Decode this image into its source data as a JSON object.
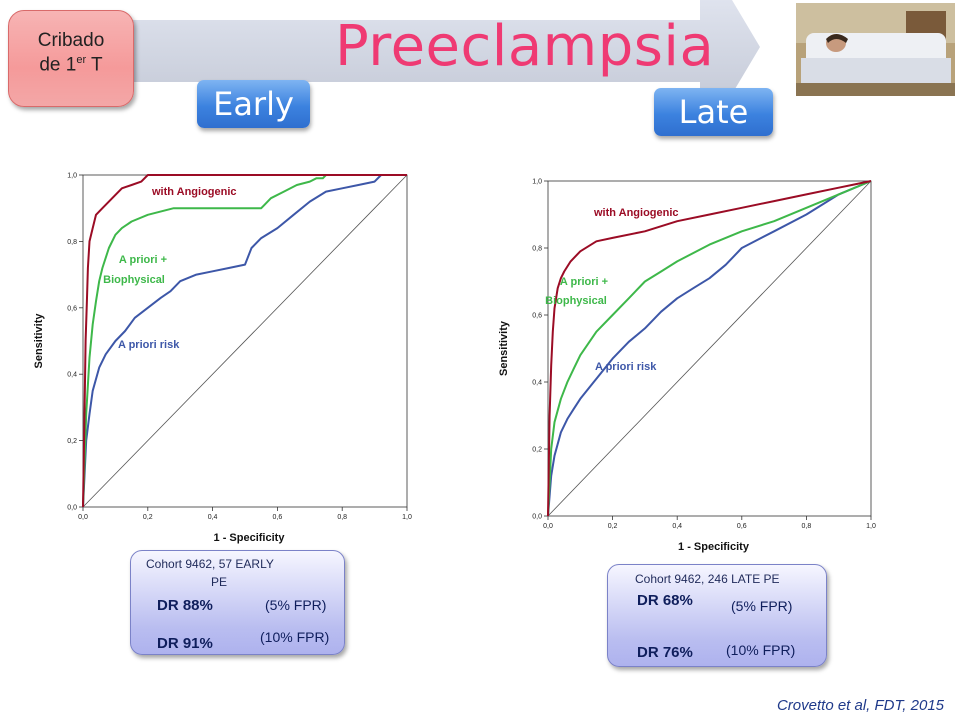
{
  "banner": {
    "title": "Preeclampsia"
  },
  "badge": {
    "line1": "Cribado",
    "line2_prefix": "de 1",
    "line2_sup": "er",
    "line2_suffix": " T"
  },
  "pills": {
    "early": "Early",
    "late": "Late"
  },
  "colors": {
    "angiogenic": "#9b0c25",
    "biophysical": "#3eb84a",
    "apriori": "#3d57a8",
    "diagonal": "#555555",
    "banner_title": "#ef3a73",
    "pill": "#3c82df"
  },
  "chart_data": [
    {
      "type": "line",
      "panel": "early",
      "xlabel": "1 - Specificity",
      "ylabel": "Sensitivity",
      "xlim": [
        0,
        1
      ],
      "ylim": [
        0,
        1
      ],
      "xticks": [
        "0,0",
        "0,2",
        "0,4",
        "0,6",
        "0,8",
        "1,0"
      ],
      "yticks": [
        "0,0",
        "0,2",
        "0,4",
        "0,6",
        "0,8",
        "1,0"
      ],
      "reference_diagonal": true,
      "series": [
        {
          "name": "with  Angiogenic",
          "color_key": "angiogenic",
          "x": [
            0,
            0.005,
            0.008,
            0.012,
            0.015,
            0.02,
            0.03,
            0.04,
            0.06,
            0.08,
            0.1,
            0.12,
            0.15,
            0.18,
            0.2,
            0.3,
            0.5,
            1
          ],
          "y": [
            0,
            0.3,
            0.5,
            0.62,
            0.72,
            0.8,
            0.84,
            0.88,
            0.9,
            0.92,
            0.94,
            0.96,
            0.97,
            0.98,
            1.0,
            1.0,
            1.0,
            1.0
          ]
        },
        {
          "name": "A priori +\nBiophysical",
          "color_key": "biophysical",
          "x": [
            0,
            0.01,
            0.02,
            0.03,
            0.04,
            0.05,
            0.06,
            0.08,
            0.1,
            0.12,
            0.15,
            0.2,
            0.28,
            0.4,
            0.55,
            0.56,
            0.58,
            0.62,
            0.66,
            0.7,
            0.72,
            0.74,
            0.75,
            0.8,
            1
          ],
          "y": [
            0,
            0.28,
            0.45,
            0.55,
            0.62,
            0.68,
            0.72,
            0.78,
            0.82,
            0.84,
            0.86,
            0.88,
            0.9,
            0.9,
            0.9,
            0.91,
            0.93,
            0.95,
            0.97,
            0.98,
            0.99,
            0.99,
            1.0,
            1.0,
            1.0
          ]
        },
        {
          "name": "A priori risk",
          "color_key": "apriori",
          "x": [
            0,
            0.01,
            0.02,
            0.03,
            0.05,
            0.07,
            0.1,
            0.13,
            0.16,
            0.2,
            0.24,
            0.27,
            0.3,
            0.35,
            0.4,
            0.45,
            0.5,
            0.52,
            0.55,
            0.6,
            0.65,
            0.7,
            0.75,
            0.8,
            0.85,
            0.9,
            0.92,
            0.95,
            1
          ],
          "y": [
            0,
            0.2,
            0.28,
            0.35,
            0.42,
            0.46,
            0.5,
            0.53,
            0.57,
            0.6,
            0.63,
            0.65,
            0.68,
            0.7,
            0.71,
            0.72,
            0.73,
            0.78,
            0.81,
            0.84,
            0.88,
            0.92,
            0.95,
            0.96,
            0.97,
            0.98,
            1.0,
            1.0,
            1.0
          ]
        }
      ],
      "annotations": [
        "with  Angiogenic",
        "A priori +",
        "Biophysical",
        "A priori risk"
      ]
    },
    {
      "type": "line",
      "panel": "late",
      "xlabel": "1 - Specificity",
      "ylabel": "Sensitivity",
      "xlim": [
        0,
        1
      ],
      "ylim": [
        0,
        1
      ],
      "xticks": [
        "0,0",
        "0,2",
        "0,4",
        "0,6",
        "0,8",
        "1,0"
      ],
      "yticks": [
        "0,0",
        "0,2",
        "0,4",
        "0,6",
        "0,8",
        "1,0"
      ],
      "reference_diagonal": true,
      "series": [
        {
          "name": "with  Angiogenic",
          "color_key": "angiogenic",
          "x": [
            0,
            0.005,
            0.01,
            0.015,
            0.02,
            0.03,
            0.04,
            0.05,
            0.07,
            0.1,
            0.15,
            0.2,
            0.3,
            0.4,
            0.5,
            0.6,
            0.7,
            0.8,
            0.9,
            0.95,
            1
          ],
          "y": [
            0,
            0.3,
            0.45,
            0.55,
            0.62,
            0.68,
            0.71,
            0.73,
            0.76,
            0.79,
            0.82,
            0.83,
            0.85,
            0.88,
            0.9,
            0.92,
            0.94,
            0.96,
            0.98,
            0.99,
            1.0
          ]
        },
        {
          "name": "A priori +\nBiophysical",
          "color_key": "biophysical",
          "x": [
            0,
            0.01,
            0.02,
            0.04,
            0.06,
            0.08,
            0.1,
            0.15,
            0.2,
            0.25,
            0.3,
            0.35,
            0.4,
            0.5,
            0.6,
            0.7,
            0.8,
            0.9,
            1
          ],
          "y": [
            0,
            0.2,
            0.28,
            0.35,
            0.4,
            0.44,
            0.48,
            0.55,
            0.6,
            0.65,
            0.7,
            0.73,
            0.76,
            0.81,
            0.85,
            0.88,
            0.92,
            0.96,
            1.0
          ]
        },
        {
          "name": "A priori risk",
          "color_key": "apriori",
          "x": [
            0,
            0.01,
            0.02,
            0.04,
            0.06,
            0.08,
            0.1,
            0.15,
            0.2,
            0.25,
            0.3,
            0.35,
            0.4,
            0.45,
            0.5,
            0.55,
            0.6,
            0.7,
            0.8,
            0.9,
            1
          ],
          "y": [
            0,
            0.12,
            0.18,
            0.25,
            0.29,
            0.32,
            0.35,
            0.41,
            0.47,
            0.52,
            0.56,
            0.61,
            0.65,
            0.68,
            0.71,
            0.75,
            0.8,
            0.85,
            0.9,
            0.96,
            1.0
          ]
        }
      ],
      "annotations": [
        "with  Angiogenic",
        "A priori +",
        "Biophysical",
        "A priori risk"
      ]
    }
  ],
  "results": {
    "early": {
      "cohort_line1": "Cohort 9462, 57 EARLY",
      "cohort_line2": "PE",
      "dr1": "DR 88%",
      "fpr1": "(5% FPR)",
      "dr2": "DR 91%",
      "fpr2": "(10% FPR)"
    },
    "late": {
      "cohort": "Cohort 9462, 246 LATE PE",
      "dr1": "DR 68%",
      "fpr1": "(5% FPR)",
      "dr2": "DR 76%",
      "fpr2": "(10% FPR)"
    }
  },
  "citation": "Crovetto et al, FDT, 2015"
}
